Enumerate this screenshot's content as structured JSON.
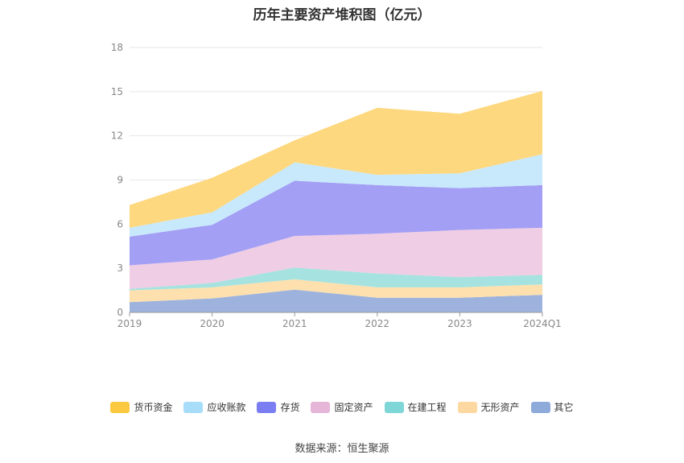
{
  "chart_data": {
    "type": "area",
    "title": "历年主要资产堆积图（亿元）",
    "categories": [
      "2019",
      "2020",
      "2021",
      "2022",
      "2023",
      "2024Q1"
    ],
    "ylim": [
      0,
      18
    ],
    "yticks": [
      0,
      3,
      6,
      9,
      12,
      15,
      18
    ],
    "grid": true,
    "legend_position": "bottom",
    "stacked": true,
    "series": [
      {
        "name": "其它",
        "color": "#9db3dd",
        "values": [
          0.7,
          0.95,
          1.55,
          1.0,
          1.0,
          1.2
        ]
      },
      {
        "name": "无形资产",
        "color": "#fde0ae",
        "values": [
          0.8,
          0.75,
          0.7,
          0.7,
          0.7,
          0.7
        ]
      },
      {
        "name": "在建工程",
        "color": "#a6e3e0",
        "values": [
          0.1,
          0.3,
          0.8,
          0.95,
          0.7,
          0.65
        ]
      },
      {
        "name": "固定资产",
        "color": "#efcde4",
        "values": [
          1.6,
          1.6,
          2.15,
          2.7,
          3.2,
          3.2
        ]
      },
      {
        "name": "存货",
        "color": "#a39ff5",
        "values": [
          1.95,
          2.35,
          3.75,
          3.3,
          2.85,
          2.9
        ]
      },
      {
        "name": "应收账款",
        "color": "#c8e9fb",
        "values": [
          0.6,
          0.85,
          1.25,
          0.7,
          1.0,
          2.1
        ]
      },
      {
        "name": "货币资金",
        "color": "#fed87f",
        "values": [
          1.55,
          2.35,
          1.5,
          4.55,
          4.05,
          4.3
        ]
      }
    ]
  },
  "legend": [
    {
      "label": "货币资金",
      "color": "#fbc93f"
    },
    {
      "label": "应收账款",
      "color": "#a8ddfa"
    },
    {
      "label": "存货",
      "color": "#7b7ef2"
    },
    {
      "label": "固定资产",
      "color": "#e6b6d9"
    },
    {
      "label": "在建工程",
      "color": "#7fd6d6"
    },
    {
      "label": "无形资产",
      "color": "#fdd8a0"
    },
    {
      "label": "其它",
      "color": "#8eaadb"
    }
  ],
  "source_text": "数据来源：恒生聚源"
}
